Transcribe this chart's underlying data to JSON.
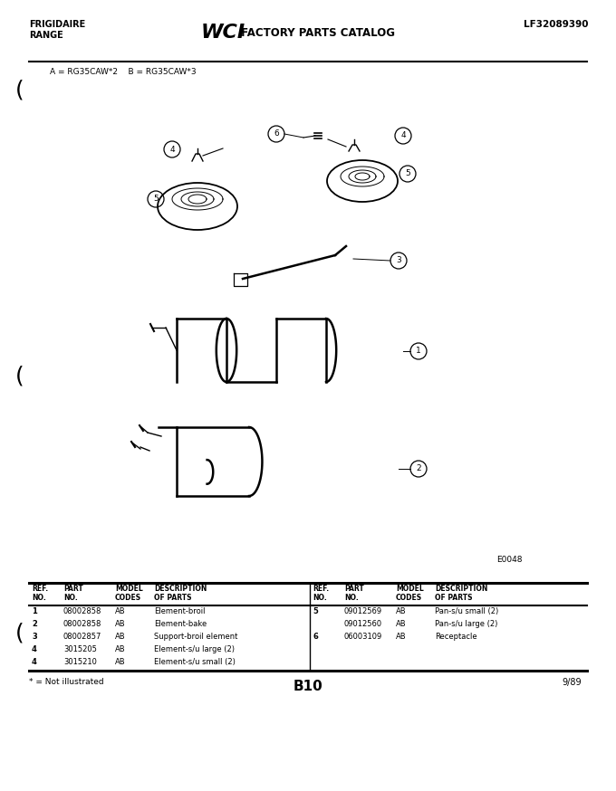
{
  "title_left": "FRIGIDAIRE\nRANGE",
  "title_right": "LF32089390",
  "model_line": "A = RG35CAW*2    B = RG35CAW*3",
  "e_code": "E0048",
  "page_code": "B10",
  "page_num": "9/89",
  "footnote": "* = Not illustrated",
  "bg_color": "#ffffff",
  "text_color": "#000000",
  "table": {
    "rows_left": [
      [
        "1",
        "08002858",
        "AB",
        "Element-broil"
      ],
      [
        "2",
        "08002858",
        "AB",
        "Element-bake"
      ],
      [
        "3",
        "08002857",
        "AB",
        "Support-broil element"
      ],
      [
        "4",
        "3015205",
        "AB",
        "Element-s/u large (2)"
      ],
      [
        "4",
        "3015210",
        "AB",
        "Element-s/u small (2)"
      ]
    ],
    "rows_right": [
      [
        "5",
        "09012569",
        "AB",
        "Pan-s/u small (2)"
      ],
      [
        "",
        "09012560",
        "AB",
        "Pan-s/u large (2)"
      ],
      [
        "6",
        "06003109",
        "AB",
        "Receptacle"
      ]
    ]
  }
}
